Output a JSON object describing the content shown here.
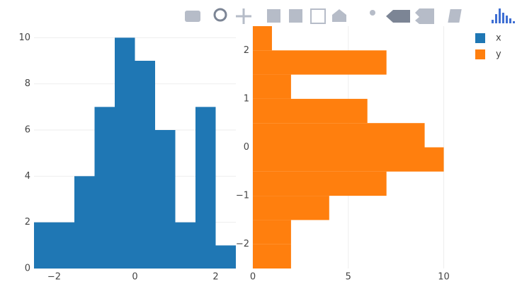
{
  "chart_data": [
    {
      "type": "histogram",
      "orientation": "vertical",
      "bins": [
        -2.5,
        -2,
        -1.5,
        -1,
        -0.5,
        0,
        0.5,
        1,
        1.5,
        2,
        2.5
      ],
      "series": [
        {
          "name": "x",
          "color": "#1f77b4",
          "values": [
            2,
            2,
            4,
            7,
            10,
            9,
            6,
            2,
            7,
            1
          ]
        }
      ],
      "xlim": [
        -2.5,
        2.5
      ],
      "xticks": [
        {
          "value": -2,
          "label": "−2"
        },
        0,
        2
      ],
      "ylim": [
        0,
        10.5
      ],
      "yticks": [
        0,
        2,
        4,
        6,
        8,
        10
      ],
      "grid": true
    },
    {
      "type": "histogram",
      "orientation": "horizontal",
      "bins": [
        -2.5,
        -2,
        -1.5,
        -1,
        -0.5,
        0,
        0.5,
        1,
        1.5,
        2,
        2.5
      ],
      "series": [
        {
          "name": "y",
          "color": "#ff7f0e",
          "values": [
            2,
            2,
            4,
            7,
            10,
            9,
            6,
            2,
            7,
            1
          ]
        }
      ],
      "xlim": [
        0,
        10.5
      ],
      "xticks": [
        0,
        5,
        10
      ],
      "ylim": [
        -2.5,
        2.5
      ],
      "yticks": [
        {
          "value": -2,
          "label": "−2"
        },
        {
          "value": -1,
          "label": "−1"
        },
        0,
        1,
        2
      ],
      "grid": true
    }
  ]
}
